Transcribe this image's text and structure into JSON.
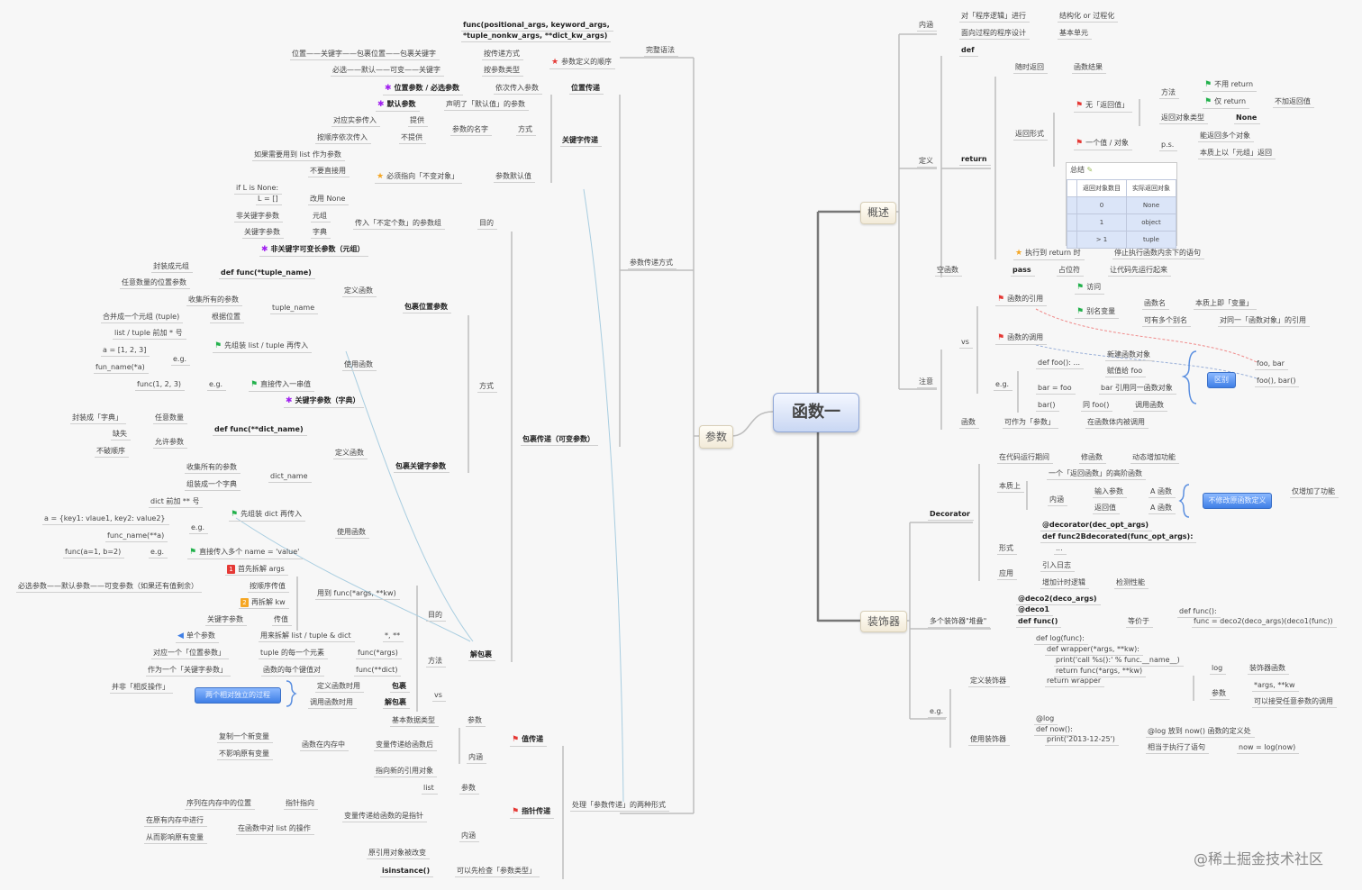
{
  "central_topic": "函数一",
  "main_topics": {
    "params": "参数",
    "overview": "概述",
    "decorator": "装饰器"
  },
  "summary_table": {
    "title": "总结",
    "headers": [
      "返回对象数目",
      "实际返回对象"
    ],
    "rows": [
      [
        "0",
        "None"
      ],
      [
        "1",
        "object"
      ],
      [
        "> 1",
        "tuple"
      ]
    ]
  },
  "callouts": {
    "difference": "区别",
    "no_modify": "不修改原函数定义",
    "independent": "两个相对独立的过程"
  },
  "watermark": "@稀土掘金技术社区",
  "colors": {
    "red_flag": "#e53935",
    "green_flag": "#22b14c",
    "purple_star": "#a020f0",
    "orange_star": "#f5a623",
    "accent_blue": "#3f7fe6"
  },
  "nodes": [
    {
      "text": "内涵"
    },
    {
      "text": "对「程序逻辑」进行"
    },
    {
      "text": "结构化 or 过程化"
    },
    {
      "text": "面向过程的程序设计"
    },
    {
      "text": "基本单元"
    },
    {
      "text": "def"
    },
    {
      "text": "定义"
    },
    {
      "text": "return"
    },
    {
      "text": "随时返回"
    },
    {
      "text": "函数结果"
    },
    {
      "text": "返回形式"
    },
    {
      "text": "无「返回值」",
      "icon": "red-flag"
    },
    {
      "text": "方法"
    },
    {
      "text": "不用 return",
      "icon": "green-flag"
    },
    {
      "text": "仅 return",
      "icon": "green-flag"
    },
    {
      "text": "不加返回值"
    },
    {
      "text": "返回对象类型"
    },
    {
      "text": "None"
    },
    {
      "text": "一个值 / 对象",
      "icon": "red-flag"
    },
    {
      "text": "p.s."
    },
    {
      "text": "能返回多个对象"
    },
    {
      "text": "本质上以「元组」返回"
    },
    {
      "text": "执行到 return 时",
      "icon": "star-orange"
    },
    {
      "text": "停止执行函数内余下的语句"
    },
    {
      "text": "空函数"
    },
    {
      "text": "pass"
    },
    {
      "text": "占位符"
    },
    {
      "text": "让代码先运行起来"
    },
    {
      "text": "注意"
    },
    {
      "text": "vs"
    },
    {
      "text": "函数的引用",
      "icon": "red-flag"
    },
    {
      "text": "访问",
      "icon": "green-flag"
    },
    {
      "text": "别名变量",
      "icon": "green-flag"
    },
    {
      "text": "函数名"
    },
    {
      "text": "本质上即「变量」"
    },
    {
      "text": "可有多个别名"
    },
    {
      "text": "对同一「函数对象」的引用"
    },
    {
      "text": "函数的调用",
      "icon": "red-flag"
    },
    {
      "text": "e.g."
    },
    {
      "text": "def foo(): ..."
    },
    {
      "text": "新建函数对象"
    },
    {
      "text": "赋值给 foo"
    },
    {
      "text": "bar = foo"
    },
    {
      "text": "bar 引用同一函数对象"
    },
    {
      "text": "bar()"
    },
    {
      "text": "同 foo()"
    },
    {
      "text": "调用函数"
    },
    {
      "text": "foo, bar"
    },
    {
      "text": "foo(), bar()"
    },
    {
      "text": "函数"
    },
    {
      "text": "可作为「参数」"
    },
    {
      "text": "在函数体内被调用"
    },
    {
      "text": "Decorator"
    },
    {
      "text": "在代码运行期间"
    },
    {
      "text": "修函数"
    },
    {
      "text": "动态增加功能"
    },
    {
      "text": "本质上"
    },
    {
      "text": "一个「返回函数」的高阶函数"
    },
    {
      "text": "内涵"
    },
    {
      "text": "输入参数"
    },
    {
      "text": "A 函数"
    },
    {
      "text": "返回值"
    },
    {
      "text": "A 函数"
    },
    {
      "text": "仅增加了功能"
    },
    {
      "text": "@decorator(dec_opt_args)"
    },
    {
      "text": "def func2Bdecorated(func_opt_args):"
    },
    {
      "text": "形式"
    },
    {
      "text": "..."
    },
    {
      "text": "应用"
    },
    {
      "text": "引入日志"
    },
    {
      "text": "增加计时逻辑"
    },
    {
      "text": "检测性能"
    },
    {
      "text": "多个装饰器\"堆叠\""
    },
    {
      "text": "@deco2(deco_args)"
    },
    {
      "text": "@deco1"
    },
    {
      "text": "def func()"
    },
    {
      "text": "等价于"
    },
    {
      "text": "def func():"
    },
    {
      "text": "func = deco2(deco_args)(deco1(func))"
    },
    {
      "text": "e.g."
    },
    {
      "text": "定义装饰器"
    },
    {
      "text": "def log(func):"
    },
    {
      "text": "def wrapper(*args, **kw):"
    },
    {
      "text": "print('call %s():' % func.__name__)"
    },
    {
      "text": "return func(*args, **kw)"
    },
    {
      "text": "return wrapper"
    },
    {
      "text": "log"
    },
    {
      "text": "装饰器函数"
    },
    {
      "text": "参数"
    },
    {
      "text": "*args, **kw"
    },
    {
      "text": "可以接受任意参数的调用"
    },
    {
      "text": "使用装饰器"
    },
    {
      "text": "@log"
    },
    {
      "text": "def now():"
    },
    {
      "text": "print('2013-12-25')"
    },
    {
      "text": "@log 放到 now() 函数的定义处"
    },
    {
      "text": "相当于执行了语句"
    },
    {
      "text": "now = log(now)"
    },
    {
      "text": "完整语法"
    },
    {
      "text": "func(positional_args, keyword_args,"
    },
    {
      "text": "*tuple_nonkw_args, **dict_kw_args)"
    },
    {
      "text": "参数定义的顺序",
      "icon": "star-red"
    },
    {
      "text": "位置——关键字——包裹位置——包裹关键字"
    },
    {
      "text": "按传递方式"
    },
    {
      "text": "必选——默认——可变——关键字"
    },
    {
      "text": "按参数类型"
    },
    {
      "text": "参数传递方式"
    },
    {
      "text": "位置参数 / 必选参数",
      "icon": "star-purple"
    },
    {
      "text": "依次传入参数"
    },
    {
      "text": "位置传递"
    },
    {
      "text": "默认参数",
      "icon": "star-purple"
    },
    {
      "text": "声明了「默认值」的参数"
    },
    {
      "text": "关键字传递"
    },
    {
      "text": "对应实参传入"
    },
    {
      "text": "提供"
    },
    {
      "text": "按顺序依次传入"
    },
    {
      "text": "不提供"
    },
    {
      "text": "参数的名字"
    },
    {
      "text": "方式"
    },
    {
      "text": "如果需要用到 list 作为参数"
    },
    {
      "text": "不要直接用"
    },
    {
      "text": "必须指向「不变对象」",
      "icon": "star-orange"
    },
    {
      "text": "参数默认值"
    },
    {
      "text": "if L is None:"
    },
    {
      "text": "L = []"
    },
    {
      "text": "改用 None"
    },
    {
      "text": "非关键字参数"
    },
    {
      "text": "元组"
    },
    {
      "text": "关键字参数"
    },
    {
      "text": "字典"
    },
    {
      "text": "传入「不定个数」的参数组"
    },
    {
      "text": "目的"
    },
    {
      "text": "非关键字可变长参数（元组）",
      "icon": "star-purple"
    },
    {
      "text": "包裹传递（可变参数）"
    },
    {
      "text": "方式"
    },
    {
      "text": "包裹位置参数"
    },
    {
      "text": "定义函数"
    },
    {
      "text": "def func(*tuple_name)"
    },
    {
      "text": "封装成元组"
    },
    {
      "text": "任意数量的位置参数"
    },
    {
      "text": "tuple_name"
    },
    {
      "text": "收集所有的参数"
    },
    {
      "text": "合并成一个元组 (tuple)"
    },
    {
      "text": "根据位置"
    },
    {
      "text": "使用函数"
    },
    {
      "text": "先组装 list / tuple 再传入",
      "icon": "green-flag"
    },
    {
      "text": "list / tuple 前加 * 号"
    },
    {
      "text": "e.g."
    },
    {
      "text": "a = [1, 2, 3]"
    },
    {
      "text": "fun_name(*a)"
    },
    {
      "text": "func(1, 2, 3)"
    },
    {
      "text": "e.g."
    },
    {
      "text": "直接传入一串值",
      "icon": "green-flag"
    },
    {
      "text": "关键字参数（字典）",
      "icon": "star-purple"
    },
    {
      "text": "包裹关键字参数"
    },
    {
      "text": "定义函数"
    },
    {
      "text": "def func(**dict_name)"
    },
    {
      "text": "封装成「字典」"
    },
    {
      "text": "任意数量"
    },
    {
      "text": "缺失"
    },
    {
      "text": "允许参数"
    },
    {
      "text": "不破顺序"
    },
    {
      "text": "收集所有的参数"
    },
    {
      "text": "组装成一个字典"
    },
    {
      "text": "dict_name"
    },
    {
      "text": "使用函数"
    },
    {
      "text": "dict 前加 ** 号"
    },
    {
      "text": "先组装 dict 再传入",
      "icon": "green-flag"
    },
    {
      "text": "a = {key1: vlaue1, key2: value2}"
    },
    {
      "text": "e.g."
    },
    {
      "text": "func_name(**a)"
    },
    {
      "text": "func(a=1, b=2)"
    },
    {
      "text": "e.g."
    },
    {
      "text": "直接传入多个 name = 'value'",
      "icon": "green-flag"
    },
    {
      "text": "解包裹"
    },
    {
      "text": "目的"
    },
    {
      "text": "用到 func(*args, **kw)"
    },
    {
      "text": "首先拆解 args",
      "badge": "1",
      "badge_color": "#e53935"
    },
    {
      "text": "按顺序传值"
    },
    {
      "text": "必选参数——默认参数——可变参数（如果还有值剩余）"
    },
    {
      "text": "再拆解 kw",
      "badge": "2",
      "badge_color": "#f5a623"
    },
    {
      "text": "关键字参数"
    },
    {
      "text": "传值"
    },
    {
      "text": "单个参数",
      "icon": "blue-arrow"
    },
    {
      "text": "用来拆解 list / tuple & dict"
    },
    {
      "text": "*, **"
    },
    {
      "text": "方法"
    },
    {
      "text": "对应一个「位置参数」"
    },
    {
      "text": "tuple 的每一个元素"
    },
    {
      "text": "func(*args)"
    },
    {
      "text": "作为一个「关键字参数」"
    },
    {
      "text": "函数的每个键值对"
    },
    {
      "text": "func(**dict)"
    },
    {
      "text": "vs"
    },
    {
      "text": "并非「相反操作」"
    },
    {
      "text": "定义函数时用"
    },
    {
      "text": "包裹"
    },
    {
      "text": "调用函数时用"
    },
    {
      "text": "解包裹"
    },
    {
      "text": "处理「参数传递」的两种形式"
    },
    {
      "text": "值传递",
      "icon": "red-flag"
    },
    {
      "text": "基本数据类型"
    },
    {
      "text": "参数"
    },
    {
      "text": "内涵"
    },
    {
      "text": "复制一个新变量"
    },
    {
      "text": "不影响原有变量"
    },
    {
      "text": "函数在内存中"
    },
    {
      "text": "变量传递给函数后"
    },
    {
      "text": "指向新的引用对象"
    },
    {
      "text": "指针传递",
      "icon": "red-flag"
    },
    {
      "text": "list"
    },
    {
      "text": "参数"
    },
    {
      "text": "内涵"
    },
    {
      "text": "变量传递给函数的是指针"
    },
    {
      "text": "序列在内存中的位置"
    },
    {
      "text": "指针指向"
    },
    {
      "text": "在原有内存中进行"
    },
    {
      "text": "在函数中对 list 的操作"
    },
    {
      "text": "从而影响原有变量"
    },
    {
      "text": "原引用对象被改变"
    },
    {
      "text": "isinstance()"
    },
    {
      "text": "可以先检查「参数类型」"
    }
  ]
}
